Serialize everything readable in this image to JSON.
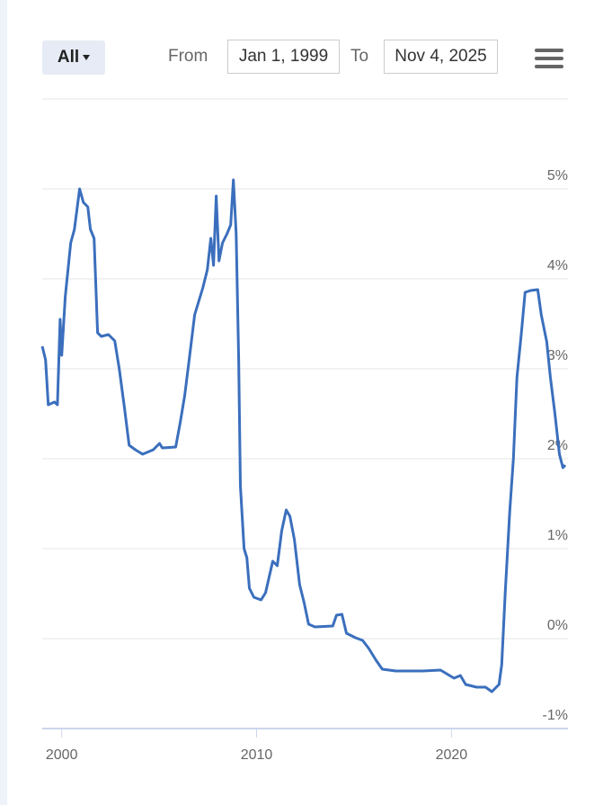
{
  "toolbar": {
    "range_button": "All",
    "from_label": "From",
    "from_value": "Jan 1, 1999",
    "to_label": "To",
    "to_value": "Nov 4, 2025"
  },
  "chart_data": {
    "type": "line",
    "color": "#3b6fbd",
    "grid": true,
    "x": [
      1999.0,
      1999.17,
      1999.31,
      1999.63,
      1999.78,
      1999.92,
      2000.0,
      2000.18,
      2000.46,
      2000.65,
      2000.92,
      2001.11,
      2001.34,
      2001.47,
      2001.66,
      2001.84,
      2002.03,
      2002.4,
      2002.72,
      2002.95,
      2003.23,
      2003.46,
      2003.78,
      2004.15,
      2004.7,
      2005.02,
      2005.16,
      2005.85,
      2006.08,
      2006.31,
      2006.54,
      2006.82,
      2007.24,
      2007.47,
      2007.65,
      2007.79,
      2007.93,
      2008.07,
      2008.25,
      2008.48,
      2008.67,
      2008.81,
      2008.95,
      2009.08,
      2009.17,
      2009.36,
      2009.5,
      2009.63,
      2009.86,
      2010.23,
      2010.46,
      2010.83,
      2011.06,
      2011.29,
      2011.52,
      2011.71,
      2011.94,
      2012.21,
      2012.44,
      2012.67,
      2012.99,
      2013.91,
      2014.1,
      2014.38,
      2014.61,
      2015.07,
      2015.44,
      2015.76,
      2016.13,
      2016.45,
      2017.14,
      2018.52,
      2019.44,
      2019.9,
      2020.13,
      2020.46,
      2020.73,
      2021.29,
      2021.75,
      2022.07,
      2022.44,
      2022.58,
      2022.76,
      2022.99,
      2023.18,
      2023.36,
      2023.59,
      2023.78,
      2024.06,
      2024.43,
      2024.61,
      2024.89,
      2025.08,
      2025.31,
      2025.54,
      2025.72,
      2025.84
    ],
    "values": [
      3.25,
      3.1,
      2.6,
      2.63,
      2.6,
      3.55,
      3.15,
      3.8,
      4.4,
      4.55,
      5.0,
      4.85,
      4.8,
      4.55,
      4.45,
      3.4,
      3.36,
      3.38,
      3.31,
      3.0,
      2.55,
      2.15,
      2.1,
      2.05,
      2.1,
      2.17,
      2.12,
      2.13,
      2.4,
      2.7,
      3.1,
      3.6,
      3.9,
      4.1,
      4.45,
      4.15,
      4.92,
      4.2,
      4.4,
      4.5,
      4.6,
      5.1,
      4.5,
      3.1,
      1.7,
      1.0,
      0.9,
      0.56,
      0.46,
      0.43,
      0.51,
      0.86,
      0.81,
      1.2,
      1.43,
      1.36,
      1.1,
      0.6,
      0.4,
      0.16,
      0.13,
      0.14,
      0.26,
      0.27,
      0.06,
      0.01,
      -0.02,
      -0.11,
      -0.24,
      -0.34,
      -0.36,
      -0.36,
      -0.35,
      -0.41,
      -0.44,
      -0.41,
      -0.51,
      -0.54,
      -0.54,
      -0.59,
      -0.51,
      -0.29,
      0.51,
      1.41,
      2.0,
      2.9,
      3.4,
      3.85,
      3.87,
      3.88,
      3.6,
      3.3,
      2.9,
      2.5,
      2.05,
      1.9,
      1.93
    ],
    "xlim": [
      1999,
      2025.84
    ],
    "xticks": [
      2000,
      2010,
      2020
    ],
    "ylim": [
      -1,
      6
    ],
    "yticks": [
      {
        "value": -1,
        "label": "-1%"
      },
      {
        "value": 0,
        "label": "0%"
      },
      {
        "value": 1,
        "label": "1%"
      },
      {
        "value": 2,
        "label": "2%"
      },
      {
        "value": 3,
        "label": "3%"
      },
      {
        "value": 4,
        "label": "4%"
      },
      {
        "value": 5,
        "label": "5%"
      }
    ]
  }
}
